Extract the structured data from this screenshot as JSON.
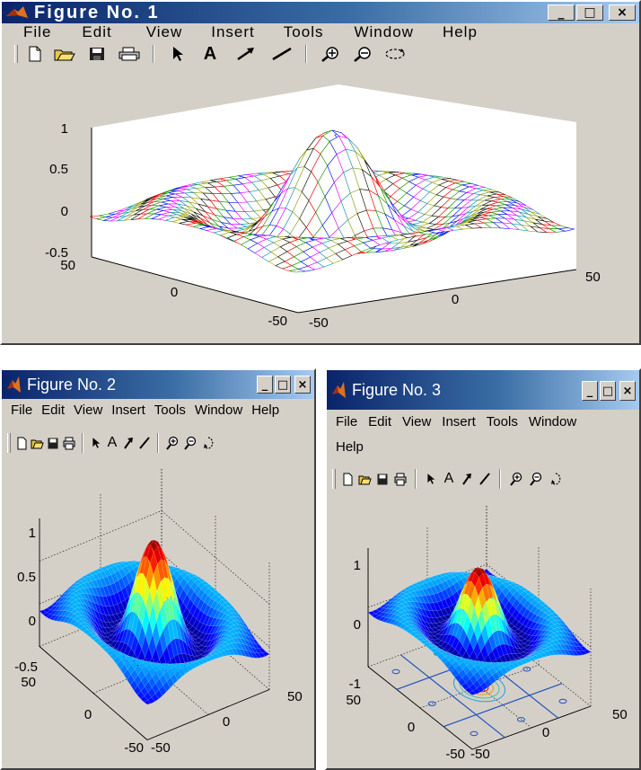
{
  "figures": [
    {
      "title": "Figure No. 1",
      "menu": [
        "File",
        "Edit",
        "View",
        "Insert",
        "Tools",
        "Window",
        "Help"
      ],
      "z_ticks": [
        "1",
        "0.5",
        "0",
        "-0.5"
      ],
      "x_ticks": [
        "50",
        "0",
        "-50"
      ],
      "y_ticks": [
        "-50",
        "0",
        "50"
      ],
      "shading": "mesh"
    },
    {
      "title": "Figure No. 2",
      "menu": [
        "File",
        "Edit",
        "View",
        "Insert",
        "Tools",
        "Window",
        "Help"
      ],
      "z_ticks": [
        "1",
        "0.5",
        "0",
        "-0.5"
      ],
      "x_ticks": [
        "50",
        "0",
        "-50"
      ],
      "y_ticks": [
        "-50",
        "0",
        "50"
      ],
      "shading": "interp"
    },
    {
      "title": "Figure No. 3",
      "menu": [
        "File",
        "Edit",
        "View",
        "Insert",
        "Tools",
        "Window",
        "Help"
      ],
      "z_ticks": [
        "1",
        "0",
        "-1"
      ],
      "x_ticks": [
        "50",
        "0",
        "-50"
      ],
      "y_ticks": [
        "-50",
        "0",
        "50"
      ],
      "shading": "surfc"
    }
  ],
  "window_controls": [
    "_",
    "□",
    "×"
  ],
  "toolbar_icons": [
    "new-file-icon",
    "open-folder-icon",
    "save-icon",
    "print-icon",
    "select-arrow-icon",
    "insert-text-icon",
    "insert-arrow-icon",
    "insert-line-icon",
    "zoom-in-icon",
    "zoom-out-icon",
    "rotate-3d-icon"
  ],
  "toolbar_glyphs": {
    "select": "➤",
    "text": "A",
    "arrow": "↗",
    "line": "╱"
  },
  "colors": {
    "window_face": "#d4d0c8",
    "title_start": "#0a246a",
    "title_end": "#a6caf0",
    "plot_bg": "#ffffff"
  }
}
